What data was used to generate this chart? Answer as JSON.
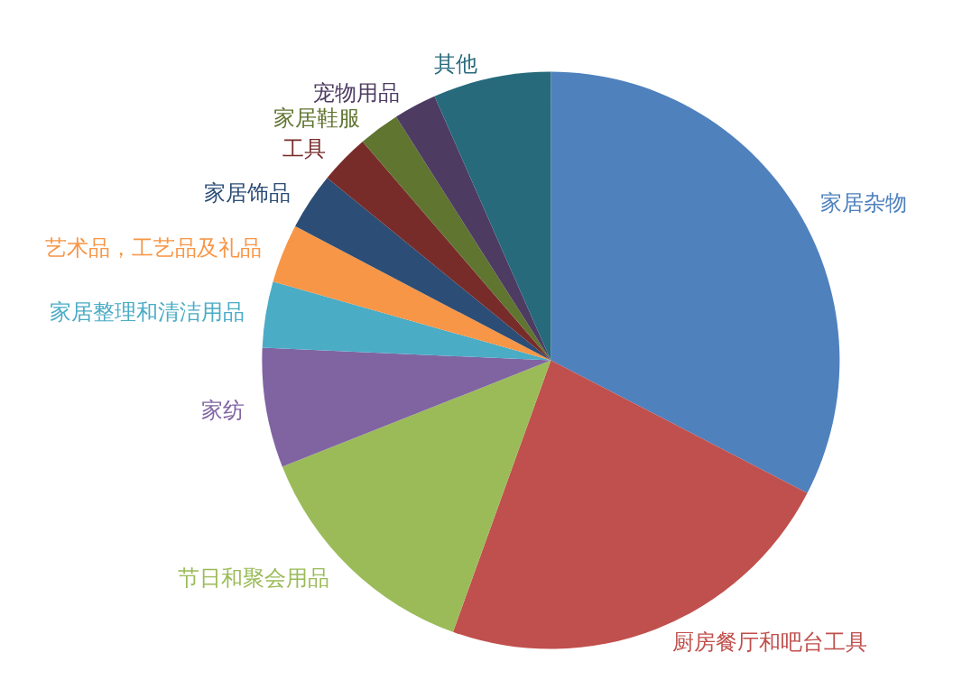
{
  "chart_data": {
    "type": "pie",
    "categories": [
      "家居杂物",
      "厨房餐厅和吧台工具",
      "节日和聚会用品",
      "家纺",
      "家居整理和清洁用品",
      "艺术品，工艺品及礼品",
      "家居饰品",
      "工具",
      "家居鞋服",
      "宠物用品",
      "其他"
    ],
    "values": [
      32.6,
      22.9,
      13.5,
      6.7,
      3.7,
      3.3,
      3.2,
      2.8,
      2.3,
      2.4,
      6.6
    ],
    "colors": [
      "#4f81bd",
      "#c0504d",
      "#9bbb59",
      "#8064a2",
      "#4bacc6",
      "#f79646",
      "#2c4d75",
      "#772c2a",
      "#5f7530",
      "#4d3b62",
      "#276a7c"
    ],
    "legend": false
  }
}
